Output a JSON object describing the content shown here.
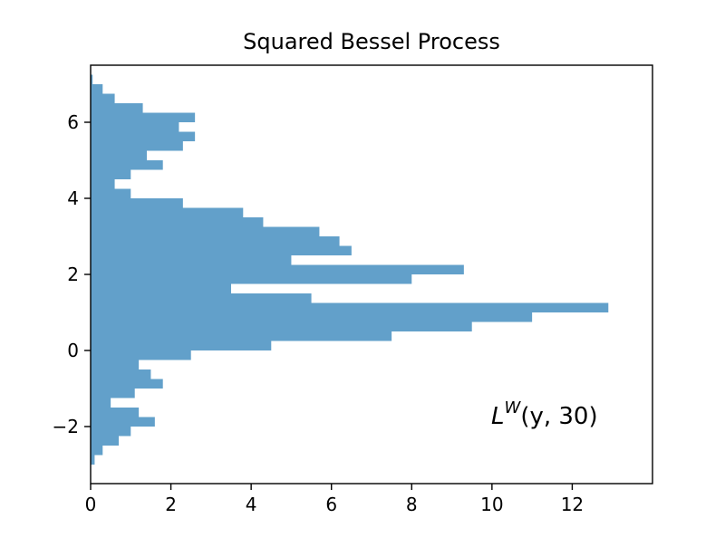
{
  "chart_data": {
    "type": "bar",
    "orientation": "horizontal",
    "title": "Squared Bessel Process",
    "xlabel": "",
    "ylabel": "",
    "xlim": [
      0,
      14
    ],
    "ylim": [
      -3.5,
      7.5
    ],
    "xticks": [
      0,
      2,
      4,
      6,
      8,
      10,
      12
    ],
    "xtick_labels": [
      "0",
      "2",
      "4",
      "6",
      "8",
      "10",
      "12"
    ],
    "yticks": [
      -2,
      0,
      2,
      4,
      6
    ],
    "ytick_labels": [
      "−2",
      "0",
      "2",
      "4",
      "6"
    ],
    "grid": false,
    "legend": "none",
    "bar_color": "#62a0ca",
    "annotation": {
      "base": "L",
      "sup": "W",
      "args": "(y, 30)"
    },
    "bins_y": [
      -3.0,
      -2.75,
      -2.5,
      -2.25,
      -2.0,
      -1.75,
      -1.5,
      -1.25,
      -1.0,
      -0.75,
      -0.5,
      -0.25,
      0.0,
      0.25,
      0.5,
      0.75,
      1.0,
      1.25,
      1.5,
      1.75,
      2.0,
      2.25,
      2.5,
      2.75,
      3.0,
      3.25,
      3.5,
      3.75,
      4.0,
      4.25,
      4.5,
      4.75,
      5.0,
      5.25,
      5.5,
      5.75,
      6.0,
      6.25,
      6.5,
      6.75,
      7.0
    ],
    "values": [
      0.1,
      0.3,
      0.7,
      1.0,
      1.6,
      1.2,
      0.5,
      1.1,
      1.8,
      1.5,
      1.2,
      2.5,
      4.5,
      7.5,
      9.5,
      11.0,
      12.9,
      5.5,
      3.5,
      8.0,
      9.3,
      5.0,
      6.5,
      6.2,
      5.7,
      4.3,
      3.8,
      2.3,
      1.0,
      0.6,
      1.0,
      1.8,
      1.4,
      2.3,
      2.6,
      2.2,
      2.6,
      1.3,
      0.6,
      0.3,
      0.05
    ]
  }
}
